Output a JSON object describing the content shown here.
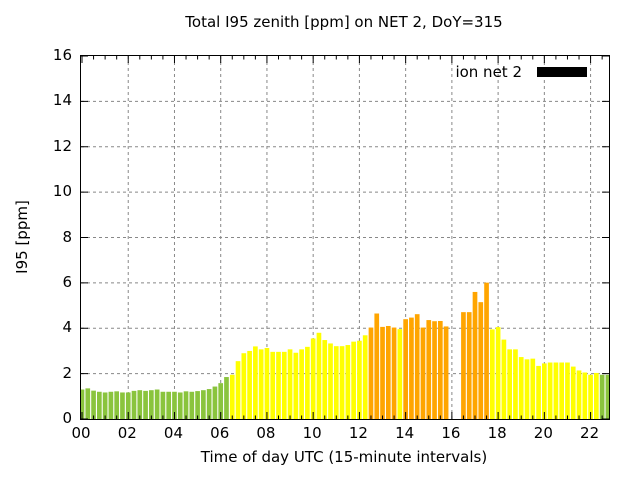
{
  "title": "Total I95 zenith [ppm] on NET 2, DoY=315",
  "chart_data": {
    "type": "bar",
    "title": "Total I95 zenith [ppm] on NET 2, DoY=315",
    "xlabel": "Time of day UTC (15-minute intervals)",
    "ylabel": "I95 [ppm]",
    "ylim": [
      0,
      16
    ],
    "xlim_hours": [
      0,
      22.84
    ],
    "grid": true,
    "bar_interval_minutes": 15,
    "y_ticks": [
      "0",
      "2",
      "4",
      "6",
      "8",
      "10",
      "12",
      "14",
      "16"
    ],
    "x_ticks": [
      {
        "h": 0,
        "label": "00"
      },
      {
        "h": 2,
        "label": "02"
      },
      {
        "h": 4,
        "label": "04"
      },
      {
        "h": 6,
        "label": "06"
      },
      {
        "h": 8,
        "label": "08"
      },
      {
        "h": 10,
        "label": "10"
      },
      {
        "h": 12,
        "label": "12"
      },
      {
        "h": 14,
        "label": "14"
      },
      {
        "h": 16,
        "label": "16"
      },
      {
        "h": 18,
        "label": "18"
      },
      {
        "h": 20,
        "label": "20"
      },
      {
        "h": 22,
        "label": "22"
      }
    ],
    "legend": {
      "label": "ion net 2",
      "swatch_color": "#000000",
      "position": "top-right"
    },
    "palette": {
      "g": "#8ac43d",
      "y": "#ffff00",
      "o": "#ffa500"
    },
    "grid_color": "#888888",
    "frame_color": "#000000",
    "series": [
      {
        "name": "ion net 2",
        "points": [
          {
            "t": "00:00",
            "v": 1.3,
            "c": "g"
          },
          {
            "t": "00:15",
            "v": 1.35,
            "c": "g"
          },
          {
            "t": "00:30",
            "v": 1.25,
            "c": "g"
          },
          {
            "t": "00:45",
            "v": 1.2,
            "c": "g"
          },
          {
            "t": "01:00",
            "v": 1.17,
            "c": "g"
          },
          {
            "t": "01:15",
            "v": 1.2,
            "c": "g"
          },
          {
            "t": "01:30",
            "v": 1.22,
            "c": "g"
          },
          {
            "t": "01:45",
            "v": 1.17,
            "c": "g"
          },
          {
            "t": "02:00",
            "v": 1.17,
            "c": "g"
          },
          {
            "t": "02:15",
            "v": 1.24,
            "c": "g"
          },
          {
            "t": "02:30",
            "v": 1.27,
            "c": "g"
          },
          {
            "t": "02:45",
            "v": 1.24,
            "c": "g"
          },
          {
            "t": "03:00",
            "v": 1.27,
            "c": "g"
          },
          {
            "t": "03:15",
            "v": 1.3,
            "c": "g"
          },
          {
            "t": "03:30",
            "v": 1.2,
            "c": "g"
          },
          {
            "t": "03:45",
            "v": 1.2,
            "c": "g"
          },
          {
            "t": "04:00",
            "v": 1.2,
            "c": "g"
          },
          {
            "t": "04:15",
            "v": 1.17,
            "c": "g"
          },
          {
            "t": "04:30",
            "v": 1.22,
            "c": "g"
          },
          {
            "t": "04:45",
            "v": 1.2,
            "c": "g"
          },
          {
            "t": "05:00",
            "v": 1.23,
            "c": "g"
          },
          {
            "t": "05:15",
            "v": 1.27,
            "c": "g"
          },
          {
            "t": "05:30",
            "v": 1.32,
            "c": "g"
          },
          {
            "t": "05:45",
            "v": 1.43,
            "c": "g"
          },
          {
            "t": "06:00",
            "v": 1.58,
            "c": "g"
          },
          {
            "t": "06:15",
            "v": 1.85,
            "c": "g"
          },
          {
            "t": "06:30",
            "v": 1.95,
            "c": "y"
          },
          {
            "t": "06:45",
            "v": 2.55,
            "c": "y"
          },
          {
            "t": "07:00",
            "v": 2.9,
            "c": "y"
          },
          {
            "t": "07:15",
            "v": 3.0,
            "c": "y"
          },
          {
            "t": "07:30",
            "v": 3.2,
            "c": "y"
          },
          {
            "t": "07:45",
            "v": 3.07,
            "c": "y"
          },
          {
            "t": "08:00",
            "v": 3.13,
            "c": "y"
          },
          {
            "t": "08:15",
            "v": 2.96,
            "c": "y"
          },
          {
            "t": "08:30",
            "v": 2.96,
            "c": "y"
          },
          {
            "t": "08:45",
            "v": 2.96,
            "c": "y"
          },
          {
            "t": "09:00",
            "v": 3.07,
            "c": "y"
          },
          {
            "t": "09:15",
            "v": 2.92,
            "c": "y"
          },
          {
            "t": "09:30",
            "v": 3.07,
            "c": "y"
          },
          {
            "t": "09:45",
            "v": 3.18,
            "c": "y"
          },
          {
            "t": "10:00",
            "v": 3.55,
            "c": "y"
          },
          {
            "t": "10:15",
            "v": 3.8,
            "c": "y"
          },
          {
            "t": "10:30",
            "v": 3.48,
            "c": "y"
          },
          {
            "t": "10:45",
            "v": 3.33,
            "c": "y"
          },
          {
            "t": "11:00",
            "v": 3.21,
            "c": "y"
          },
          {
            "t": "11:15",
            "v": 3.21,
            "c": "y"
          },
          {
            "t": "11:30",
            "v": 3.26,
            "c": "y"
          },
          {
            "t": "11:45",
            "v": 3.41,
            "c": "y"
          },
          {
            "t": "12:00",
            "v": 3.45,
            "c": "y"
          },
          {
            "t": "12:15",
            "v": 3.69,
            "c": "y"
          },
          {
            "t": "12:30",
            "v": 4.03,
            "c": "o"
          },
          {
            "t": "12:45",
            "v": 4.65,
            "c": "o"
          },
          {
            "t": "13:00",
            "v": 4.06,
            "c": "o"
          },
          {
            "t": "13:15",
            "v": 4.1,
            "c": "o"
          },
          {
            "t": "13:30",
            "v": 4.03,
            "c": "o"
          },
          {
            "t": "13:45",
            "v": 3.96,
            "c": "y"
          },
          {
            "t": "14:00",
            "v": 4.4,
            "c": "o"
          },
          {
            "t": "14:15",
            "v": 4.47,
            "c": "o"
          },
          {
            "t": "14:30",
            "v": 4.62,
            "c": "o"
          },
          {
            "t": "14:45",
            "v": 4.03,
            "c": "o"
          },
          {
            "t": "15:00",
            "v": 4.36,
            "c": "o"
          },
          {
            "t": "15:15",
            "v": 4.31,
            "c": "o"
          },
          {
            "t": "15:30",
            "v": 4.32,
            "c": "o"
          },
          {
            "t": "15:45",
            "v": 4.08,
            "c": "o"
          },
          {
            "t": "16:00",
            "v": null,
            "c": null
          },
          {
            "t": "16:15",
            "v": null,
            "c": null
          },
          {
            "t": "16:30",
            "v": 4.71,
            "c": "o"
          },
          {
            "t": "16:45",
            "v": 4.71,
            "c": "o"
          },
          {
            "t": "17:00",
            "v": 5.6,
            "c": "o"
          },
          {
            "t": "17:15",
            "v": 5.15,
            "c": "o"
          },
          {
            "t": "17:30",
            "v": 6.01,
            "c": "o"
          },
          {
            "t": "17:45",
            "v": 3.95,
            "c": "y"
          },
          {
            "t": "18:00",
            "v": 4.05,
            "c": "y"
          },
          {
            "t": "18:15",
            "v": 3.5,
            "c": "y"
          },
          {
            "t": "18:30",
            "v": 3.07,
            "c": "y"
          },
          {
            "t": "18:45",
            "v": 3.07,
            "c": "y"
          },
          {
            "t": "19:00",
            "v": 2.73,
            "c": "y"
          },
          {
            "t": "19:15",
            "v": 2.63,
            "c": "y"
          },
          {
            "t": "19:30",
            "v": 2.66,
            "c": "y"
          },
          {
            "t": "19:45",
            "v": 2.34,
            "c": "y"
          },
          {
            "t": "20:00",
            "v": 2.45,
            "c": "y"
          },
          {
            "t": "20:15",
            "v": 2.49,
            "c": "y"
          },
          {
            "t": "20:30",
            "v": 2.49,
            "c": "y"
          },
          {
            "t": "20:45",
            "v": 2.49,
            "c": "y"
          },
          {
            "t": "21:00",
            "v": 2.49,
            "c": "y"
          },
          {
            "t": "21:15",
            "v": 2.31,
            "c": "y"
          },
          {
            "t": "21:30",
            "v": 2.14,
            "c": "y"
          },
          {
            "t": "21:45",
            "v": 2.05,
            "c": "y"
          },
          {
            "t": "22:00",
            "v": 1.95,
            "c": "y"
          },
          {
            "t": "22:15",
            "v": 2.03,
            "c": "y"
          },
          {
            "t": "22:30",
            "v": 1.95,
            "c": "g"
          },
          {
            "t": "22:45",
            "v": 1.95,
            "c": "g"
          }
        ]
      }
    ]
  }
}
